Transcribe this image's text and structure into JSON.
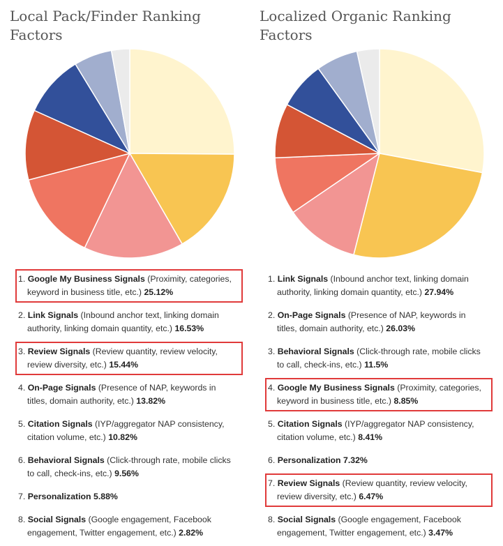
{
  "chart_data": [
    {
      "type": "pie",
      "title": "Local Pack/Finder Ranking Factors",
      "categories": [
        "Google My Business Signals",
        "Link Signals",
        "Review Signals",
        "On-Page Signals",
        "Citation Signals",
        "Behavioral Signals",
        "Personalization",
        "Social Signals"
      ],
      "values": [
        25.12,
        16.53,
        15.44,
        13.82,
        10.82,
        9.56,
        5.88,
        2.82
      ],
      "colors": [
        "#FFF4CE",
        "#F8C552",
        "#F29593",
        "#EF7561",
        "#D45535",
        "#32509A",
        "#A1AECE",
        "#EBEBEB"
      ],
      "items": [
        {
          "num": "1.",
          "name": "Google My Business Signals",
          "desc": "(Proximity, categories, keyword in business title, etc.)",
          "value": "25.12%",
          "highlighted": true
        },
        {
          "num": "2.",
          "name": "Link Signals",
          "desc": "(Inbound anchor text, linking domain authority, linking domain quantity, etc.)",
          "value": "16.53%",
          "highlighted": false
        },
        {
          "num": "3.",
          "name": "Review Signals",
          "desc": "(Review quantity, review velocity, review diversity, etc.)",
          "value": "15.44%",
          "highlighted": true
        },
        {
          "num": "4.",
          "name": "On-Page Signals",
          "desc": "(Presence of NAP, keywords in titles, domain authority, etc.)",
          "value": "13.82%",
          "highlighted": false
        },
        {
          "num": "5.",
          "name": "Citation Signals",
          "desc": "(IYP/aggregator NAP consistency, citation volume, etc.)",
          "value": "10.82%",
          "highlighted": false
        },
        {
          "num": "6.",
          "name": "Behavioral Signals",
          "desc": "(Click-through rate, mobile clicks to call, check-ins, etc.)",
          "value": "9.56%",
          "highlighted": false
        },
        {
          "num": "7.",
          "name": "Personalization",
          "desc": "",
          "value": "5.88%",
          "highlighted": false
        },
        {
          "num": "8.",
          "name": "Social Signals",
          "desc": "(Google engagement, Facebook engagement, Twitter engagement, etc.)",
          "value": "2.82%",
          "highlighted": false
        }
      ]
    },
    {
      "type": "pie",
      "title": "Localized Organic Ranking Factors",
      "categories": [
        "Link Signals",
        "On-Page Signals",
        "Behavioral Signals",
        "Google My Business Signals",
        "Citation Signals",
        "Personalization",
        "Review Signals",
        "Social Signals"
      ],
      "values": [
        27.94,
        26.03,
        11.5,
        8.85,
        8.41,
        7.32,
        6.47,
        3.47
      ],
      "colors": [
        "#FFF4CE",
        "#F8C552",
        "#F29593",
        "#EF7561",
        "#D45535",
        "#32509A",
        "#A1AECE",
        "#EBEBEB"
      ],
      "items": [
        {
          "num": "1.",
          "name": "Link Signals",
          "desc": "(Inbound anchor text, linking domain authority, linking domain quantity, etc.)",
          "value": "27.94%",
          "highlighted": false
        },
        {
          "num": "2.",
          "name": "On-Page Signals",
          "desc": "(Presence of NAP, keywords in titles, domain authority, etc.)",
          "value": "26.03%",
          "highlighted": false
        },
        {
          "num": "3.",
          "name": "Behavioral Signals",
          "desc": "(Click-through rate, mobile clicks to call, check-ins, etc.)",
          "value": "11.5%",
          "highlighted": false
        },
        {
          "num": "4.",
          "name": "Google My Business Signals",
          "desc": "(Proximity, categories, keyword in business title, etc.)",
          "value": "8.85%",
          "highlighted": true
        },
        {
          "num": "5.",
          "name": "Citation Signals",
          "desc": "(IYP/aggregator NAP consistency, citation volume, etc.)",
          "value": "8.41%",
          "highlighted": false
        },
        {
          "num": "6.",
          "name": "Personalization",
          "desc": "",
          "value": "7.32%",
          "highlighted": false
        },
        {
          "num": "7.",
          "name": "Review Signals",
          "desc": "(Review quantity, review velocity, review diversity, etc.)",
          "value": "6.47%",
          "highlighted": true
        },
        {
          "num": "8.",
          "name": "Social Signals",
          "desc": "(Google engagement, Facebook engagement, Twitter engagement, etc.)",
          "value": "3.47%",
          "highlighted": false
        }
      ]
    }
  ]
}
